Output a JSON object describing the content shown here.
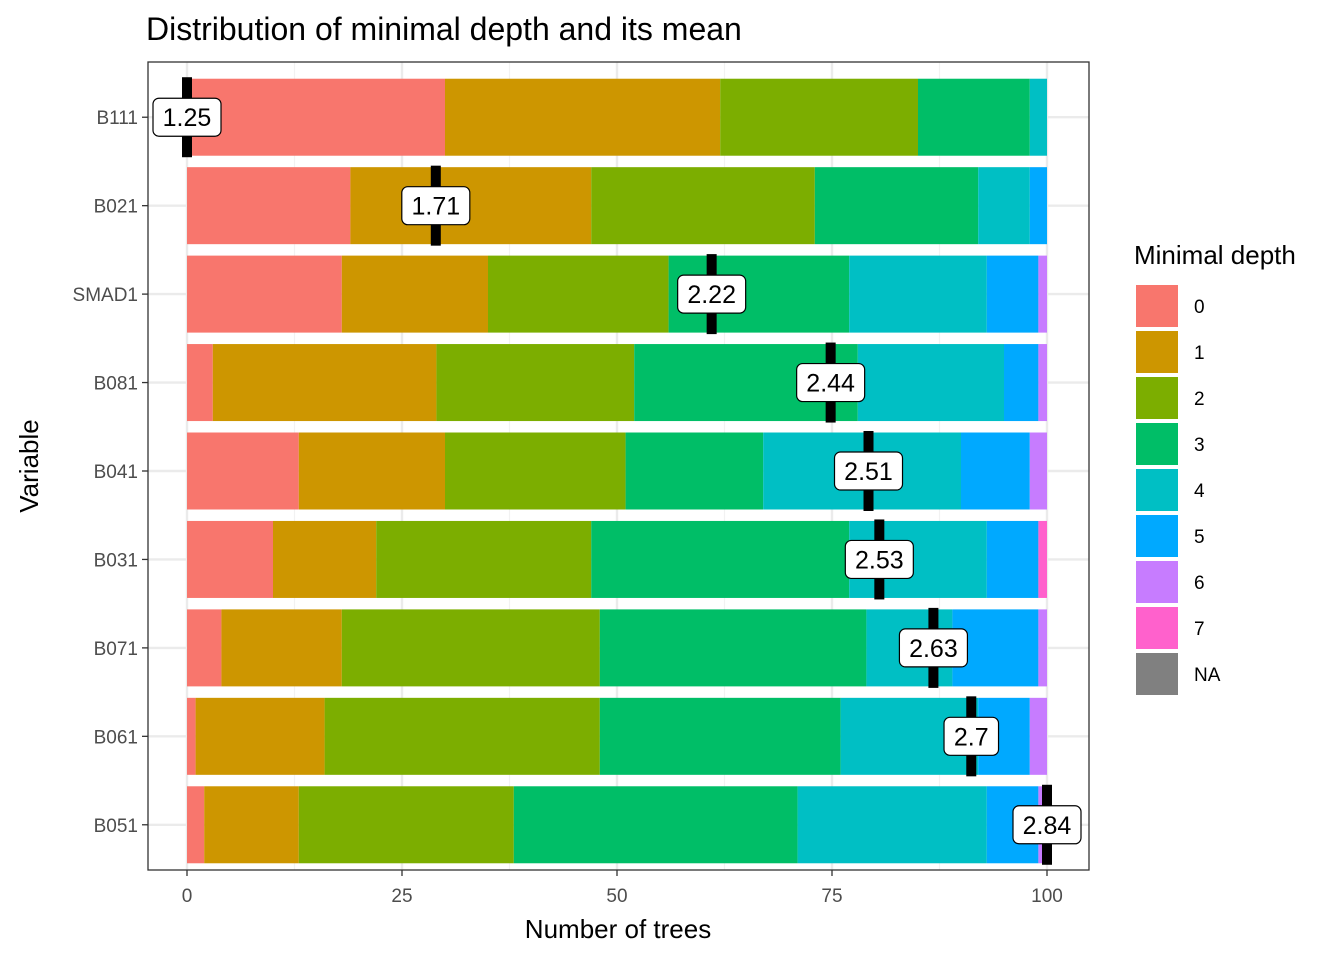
{
  "chart_data": {
    "type": "bar",
    "orientation": "horizontal",
    "stacked": true,
    "title": "Distribution of minimal depth and its mean",
    "xlabel": "Number of trees",
    "ylabel": "Variable",
    "xlim": [
      0,
      100
    ],
    "x_ticks": [
      0,
      25,
      50,
      75,
      100
    ],
    "grid": true,
    "legend": {
      "title": "Minimal depth",
      "position": "right",
      "entries": [
        {
          "label": "0",
          "color": "#F8766D"
        },
        {
          "label": "1",
          "color": "#CD9600"
        },
        {
          "label": "2",
          "color": "#7CAE00"
        },
        {
          "label": "3",
          "color": "#00BE67"
        },
        {
          "label": "4",
          "color": "#00BFC4"
        },
        {
          "label": "5",
          "color": "#00A9FF"
        },
        {
          "label": "6",
          "color": "#C77CFF"
        },
        {
          "label": "7",
          "color": "#FF61CC"
        },
        {
          "label": "NA",
          "color": "#808080"
        }
      ]
    },
    "categories": [
      "B111",
      "B021",
      "SMAD1",
      "B081",
      "B041",
      "B031",
      "B071",
      "B061",
      "B051"
    ],
    "series": [
      {
        "name": "0",
        "values": [
          30,
          19,
          18,
          3,
          13,
          10,
          4,
          1,
          2
        ]
      },
      {
        "name": "1",
        "values": [
          32,
          28,
          17,
          26,
          17,
          12,
          14,
          15,
          11
        ]
      },
      {
        "name": "2",
        "values": [
          23,
          26,
          21,
          23,
          21,
          25,
          30,
          32,
          25
        ]
      },
      {
        "name": "3",
        "values": [
          13,
          19,
          21,
          26,
          16,
          30,
          31,
          28,
          33
        ]
      },
      {
        "name": "4",
        "values": [
          2,
          6,
          16,
          17,
          23,
          16,
          10,
          16,
          22
        ]
      },
      {
        "name": "5",
        "values": [
          0,
          2,
          6,
          4,
          8,
          6,
          10,
          6,
          6
        ]
      },
      {
        "name": "6",
        "values": [
          0,
          0,
          1,
          1,
          2,
          0,
          1,
          2,
          1
        ]
      },
      {
        "name": "7",
        "values": [
          0,
          0,
          0,
          0,
          0,
          1,
          0,
          0,
          0
        ]
      },
      {
        "name": "NA",
        "values": [
          0,
          0,
          0,
          0,
          0,
          0,
          0,
          0,
          0
        ]
      }
    ],
    "mean_minimal_depth": [
      1.25,
      1.71,
      2.22,
      2.44,
      2.51,
      2.53,
      2.63,
      2.7,
      2.84
    ],
    "mean_labels": [
      "1.25",
      "1.71",
      "2.22",
      "2.44",
      "2.51",
      "2.53",
      "2.63",
      "2.7",
      "2.84"
    ]
  }
}
